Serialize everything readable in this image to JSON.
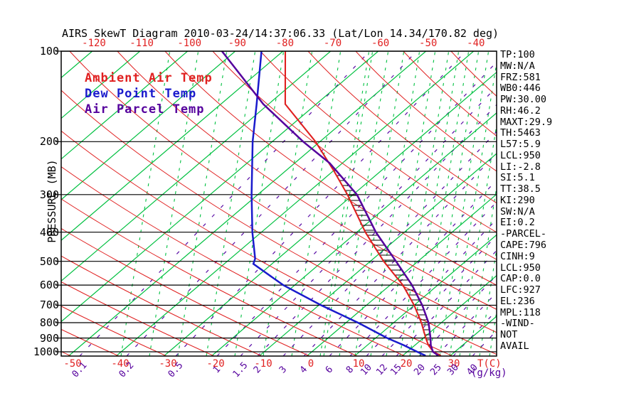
{
  "title": "AIRS SkewT Diagram 2010-03-24/14:37:06.33 (Lat/Lon 14.34/170.82 deg)",
  "legend": {
    "ambient": "Ambient Air Temp",
    "dew": "Dew Point Temp",
    "parcel": "Air Parcel Temp"
  },
  "axes": {
    "pressure_label": "PRESSURE (MB)",
    "temp_unit": "T(C)",
    "mixing_unit": "(g/kg)"
  },
  "stats": [
    "TP:100",
    "MW:N/A",
    "FRZ:581",
    "WB0:446",
    "PW:30.00",
    "RH:46.2",
    "MAXT:29.9",
    "TH:5463",
    "L57:5.9",
    "LCL:950",
    "LI:-2.8",
    "SI:5.1",
    "TT:38.5",
    "KI:290",
    "SW:N/A",
    "EI:0.2",
    "-PARCEL-",
    "CAPE:796",
    "CINH:9",
    "LCL:950",
    "CAP:0.0",
    "LFC:927",
    "EL:236",
    "MPL:118",
    "-WIND-",
    "NOT",
    "AVAIL"
  ],
  "colors": {
    "ambient": "#e02020",
    "dew": "#1a1acc",
    "parcel": "#55009d",
    "isotherm": "#00c040",
    "dry_adiabat": "#e02020",
    "moist_adiabat": "#00c040",
    "mixing_line": "#5a0da6",
    "axis": "#000000"
  },
  "chart_data": {
    "type": "line",
    "title": "AIRS SkewT Diagram 2010-03-24/14:37:06.33 (Lat/Lon 14.34/170.82 deg)",
    "x_axis_label": "T(C)",
    "y_axis_label": "PRESSURE (MB)",
    "y_scale": "log-pressure",
    "ylim": [
      100,
      1035
    ],
    "grid": "skew-t background: green solid isotherms every 10C, red dry adiabats, purple dashed mixing-ratio lines, green dashed moist adiabats, black isobars every 100MB",
    "x_ticks_top": [
      -120,
      -110,
      -100,
      -90,
      -80,
      -70,
      -60,
      -50,
      -40
    ],
    "x_ticks_bottom": [
      -50,
      -40,
      -30,
      -20,
      -10,
      0,
      10,
      20,
      30
    ],
    "pressure_ticks": [
      100,
      200,
      300,
      400,
      500,
      600,
      700,
      800,
      900,
      1000
    ],
    "mixing_ratio_ticks_g_kg": [
      0.1,
      0.2,
      0.5,
      1,
      1.5,
      2,
      3,
      4,
      6,
      8,
      10,
      12,
      15,
      20,
      25,
      30,
      40
    ],
    "legend_position": "top-left inside plot",
    "series": [
      {
        "name": "Ambient Air Temp",
        "color": "#e02020",
        "points_p_t": [
          [
            100,
            -79.5
          ],
          [
            150,
            -66.5
          ],
          [
            200,
            -50.9
          ],
          [
            250,
            -39.9
          ],
          [
            300,
            -31.2
          ],
          [
            400,
            -18.2
          ],
          [
            500,
            -7.2
          ],
          [
            600,
            2.7
          ],
          [
            700,
            10.0
          ],
          [
            800,
            15.8
          ],
          [
            900,
            20.5
          ],
          [
            950,
            22.8
          ],
          [
            1000,
            25.5
          ],
          [
            1030,
            28.0
          ]
        ]
      },
      {
        "name": "Dew Point Temp",
        "color": "#1a1acc",
        "points_p_t": [
          [
            100,
            -84.5
          ],
          [
            150,
            -72.5
          ],
          [
            200,
            -64.1
          ],
          [
            300,
            -51.3
          ],
          [
            400,
            -41.9
          ],
          [
            490,
            -34.8
          ],
          [
            510,
            -33.9
          ],
          [
            600,
            -22.4
          ],
          [
            700,
            -9.5
          ],
          [
            800,
            2.5
          ],
          [
            900,
            12.4
          ],
          [
            950,
            17.6
          ],
          [
            1000,
            22.1
          ],
          [
            1030,
            24.8
          ]
        ]
      },
      {
        "name": "Air Parcel Temp",
        "color": "#55009d",
        "points_p_t": [
          [
            100,
            -92.8
          ],
          [
            150,
            -71.1
          ],
          [
            200,
            -53.5
          ],
          [
            236,
            -42.6
          ],
          [
            300,
            -29.2
          ],
          [
            400,
            -16.0
          ],
          [
            500,
            -4.6
          ],
          [
            600,
            4.6
          ],
          [
            700,
            11.7
          ],
          [
            800,
            17.3
          ],
          [
            900,
            21.5
          ],
          [
            950,
            23.3
          ],
          [
            1000,
            25.4
          ],
          [
            1030,
            27.5
          ]
        ]
      }
    ],
    "cape_hatch": {
      "between": [
        "Ambient Air Temp",
        "Air Parcel Temp"
      ],
      "pressure_range": [
        236,
        985
      ],
      "style": "horizontal black hatch lines"
    }
  }
}
